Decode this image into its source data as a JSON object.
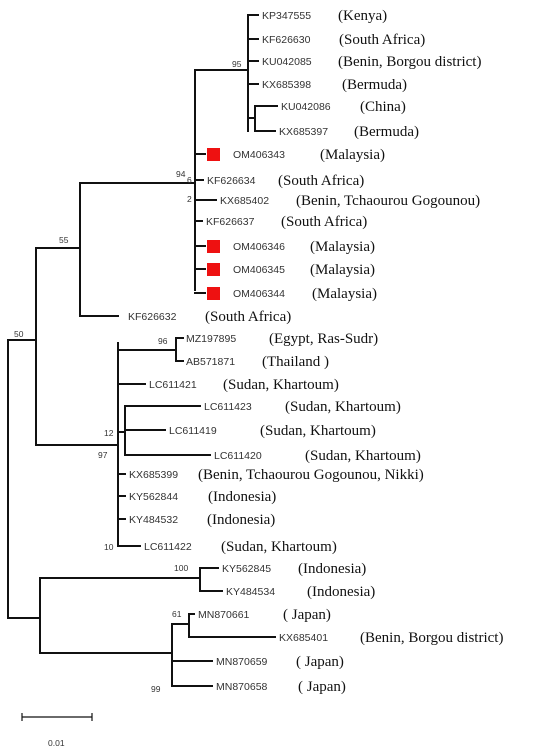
{
  "colors": {
    "branch": "#111111",
    "highlight_marker": "#ee1111"
  },
  "taxa": {
    "t01": {
      "accession": "KP347555",
      "country": "(Kenya)"
    },
    "t02": {
      "accession": "KF626630",
      "country": "(South Africa)"
    },
    "t03": {
      "accession": "KU042085",
      "country": "(Benin, Borgou district)"
    },
    "t04": {
      "accession": "KX685398",
      "country": "(Bermuda)"
    },
    "t05": {
      "accession": "KU042086",
      "country": "(China)"
    },
    "t06": {
      "accession": "KX685397",
      "country": "(Bermuda)"
    },
    "t07": {
      "accession": "OM406343",
      "country": "(Malaysia)",
      "highlighted": true
    },
    "t08": {
      "accession": "KF626634",
      "country": "(South Africa)"
    },
    "t09": {
      "accession": "KX685402",
      "country": "(Benin, Tchaourou Gogounou)"
    },
    "t10": {
      "accession": "KF626637",
      "country": "(South Africa)"
    },
    "t11": {
      "accession": "OM406346",
      "country": "(Malaysia)",
      "highlighted": true
    },
    "t12": {
      "accession": "OM406345",
      "country": "(Malaysia)",
      "highlighted": true
    },
    "t13": {
      "accession": "OM406344",
      "country": "(Malaysia)",
      "highlighted": true
    },
    "t14": {
      "accession": "KF626632",
      "country": "(South Africa)"
    },
    "t15": {
      "accession": "MZ197895",
      "country": "(Egypt, Ras-Sudr)"
    },
    "t16": {
      "accession": "AB571871",
      "country": "(Thailand )"
    },
    "t17": {
      "accession": "LC611421",
      "country": "(Sudan, Khartoum)"
    },
    "t18": {
      "accession": "LC611423",
      "country": "(Sudan, Khartoum)"
    },
    "t19": {
      "accession": "LC611419",
      "country": "(Sudan, Khartoum)"
    },
    "t20": {
      "accession": "LC611420",
      "country": "(Sudan, Khartoum)"
    },
    "t21": {
      "accession": "KX685399",
      "country": "(Benin, Tchaourou Gogounou, Nikki)"
    },
    "t22": {
      "accession": "KY562844",
      "country": "(Indonesia)"
    },
    "t23": {
      "accession": "KY484532",
      "country": "(Indonesia)"
    },
    "t24": {
      "accession": "LC611422",
      "country": "(Sudan, Khartoum)"
    },
    "t25": {
      "accession": "KY562845",
      "country": "(Indonesia)"
    },
    "t26": {
      "accession": "KY484534",
      "country": "(Indonesia)"
    },
    "t27": {
      "accession": "MN870661",
      "country": "( Japan)"
    },
    "t28": {
      "accession": "KX685401",
      "country": "(Benin, Borgou district)"
    },
    "t29": {
      "accession": "MN870659",
      "country": "( Japan)"
    },
    "t30": {
      "accession": "MN870658",
      "country": "( Japan)"
    }
  },
  "bootstrap": {
    "n95": "95",
    "n94": "94",
    "n6": "6",
    "n2": "2",
    "n55": "55",
    "n50": "50",
    "n96": "96",
    "n12": "12",
    "n97": "97",
    "n10": "10",
    "n100": "100",
    "n61": "61",
    "n99": "99"
  },
  "scale_bar": {
    "label": "0.01"
  }
}
